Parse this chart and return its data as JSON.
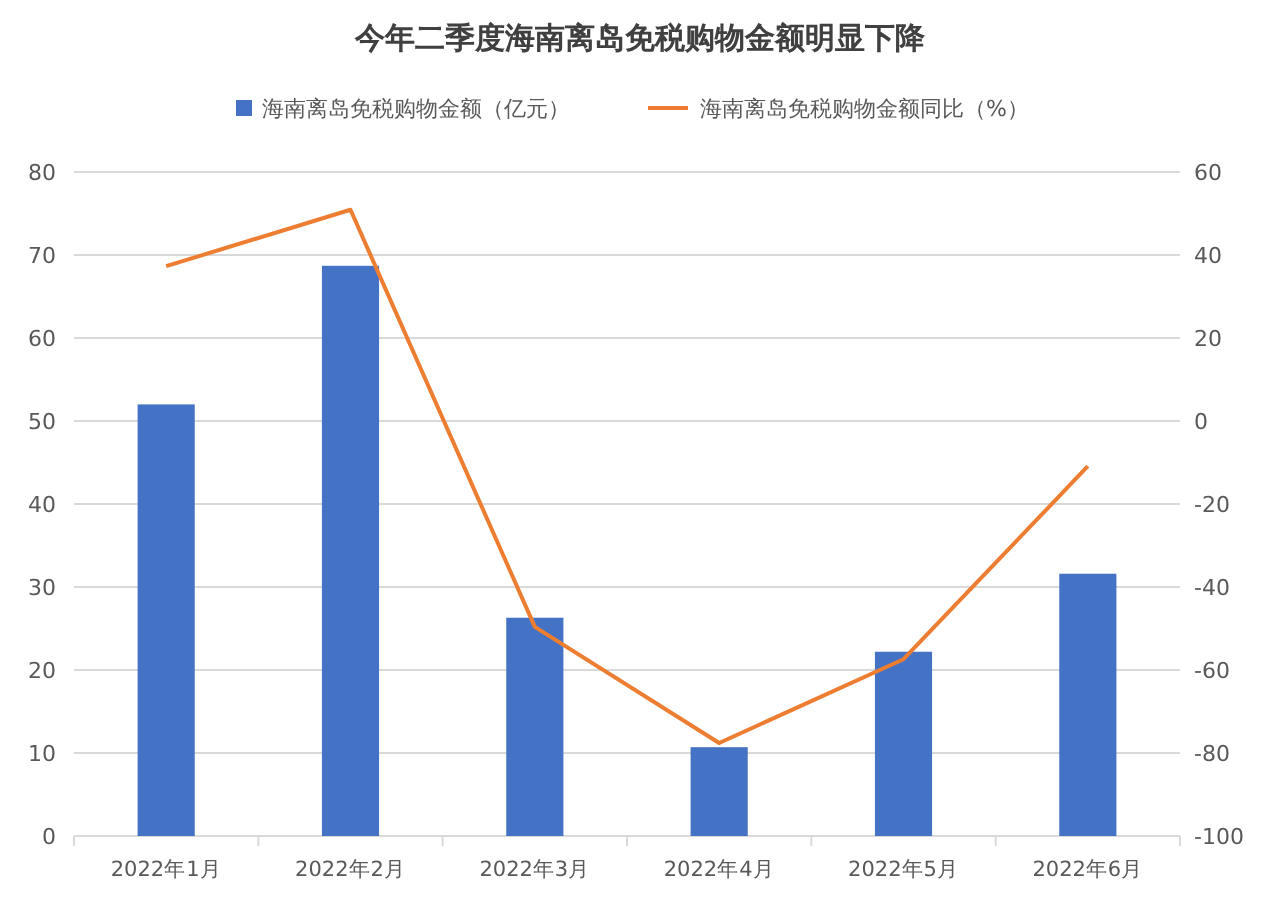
{
  "chart_data": {
    "type": "bar",
    "title": "今年二季度海南离岛免税购物金额明显下降",
    "categories": [
      "2022年1月",
      "2022年2月",
      "2022年3月",
      "2022年4月",
      "2022年5月",
      "2022年6月"
    ],
    "series": [
      {
        "name": "海南离岛免税购物金额（亿元）",
        "color": "#4472c4",
        "values": [
          52,
          68.7,
          26.3,
          10.7,
          22.2,
          31.6
        ]
      },
      {
        "name": "海南离岛免税购物金额同比（%）",
        "type": "line",
        "axis": "y2",
        "color": "#ed7d31",
        "values": [
          37.3,
          50.9,
          -49.6,
          -77.6,
          -57.4,
          -10.9
        ]
      }
    ],
    "ylim": [
      0,
      80
    ],
    "yticks": [
      0,
      10,
      20,
      30,
      40,
      50,
      60,
      70,
      80
    ],
    "y2lim": [
      -100,
      60
    ],
    "y2ticks": [
      -100,
      -80,
      -60,
      -40,
      -20,
      0,
      20,
      40,
      60
    ],
    "grid": "y",
    "legend": "top",
    "marker": "none",
    "line_style": "solid"
  }
}
